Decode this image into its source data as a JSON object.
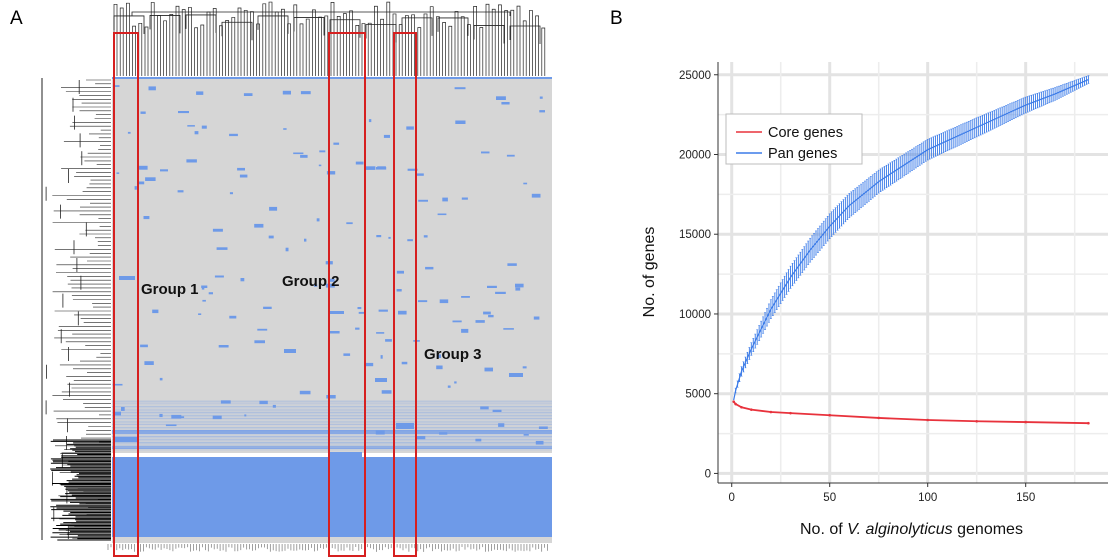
{
  "panels": {
    "a": {
      "letter": "A",
      "groups": [
        {
          "label": "Group 1"
        },
        {
          "label": "Group 2"
        },
        {
          "label": "Group 3"
        }
      ],
      "colors": {
        "absent": "#d6d6d6",
        "present": "#6e9ae8",
        "highlight": "#d62020"
      }
    },
    "b": {
      "letter": "B"
    }
  },
  "chart_data": {
    "type": "line",
    "xlabel_prefix": "No. of ",
    "xlabel_italic": "V. alginolyticus",
    "xlabel_suffix": " genomes",
    "ylabel": "No. of genes",
    "xlim": [
      -7,
      192
    ],
    "ylim": [
      -600,
      25800
    ],
    "xticks": [
      0,
      50,
      100,
      150
    ],
    "yticks": [
      0,
      5000,
      10000,
      15000,
      20000,
      25000
    ],
    "grid": true,
    "legend_position": "top-left",
    "series": [
      {
        "name": "Core genes",
        "color": "#e8323c",
        "x": [
          1,
          2,
          5,
          10,
          20,
          30,
          50,
          75,
          100,
          125,
          150,
          182
        ],
        "y": [
          4500,
          4350,
          4150,
          4000,
          3850,
          3780,
          3650,
          3480,
          3350,
          3270,
          3220,
          3150
        ]
      },
      {
        "name": "Pan genes",
        "color": "#3b7be8",
        "x": [
          1,
          2,
          5,
          10,
          20,
          30,
          40,
          50,
          60,
          75,
          100,
          125,
          150,
          165,
          182
        ],
        "y": [
          4600,
          5200,
          6400,
          7800,
          10300,
          12300,
          14000,
          15500,
          16800,
          18300,
          20300,
          21700,
          23100,
          23800,
          24700
        ],
        "error": [
          0,
          150,
          300,
          400,
          600,
          700,
          750,
          780,
          760,
          720,
          650,
          600,
          500,
          400,
          250
        ]
      }
    ]
  }
}
